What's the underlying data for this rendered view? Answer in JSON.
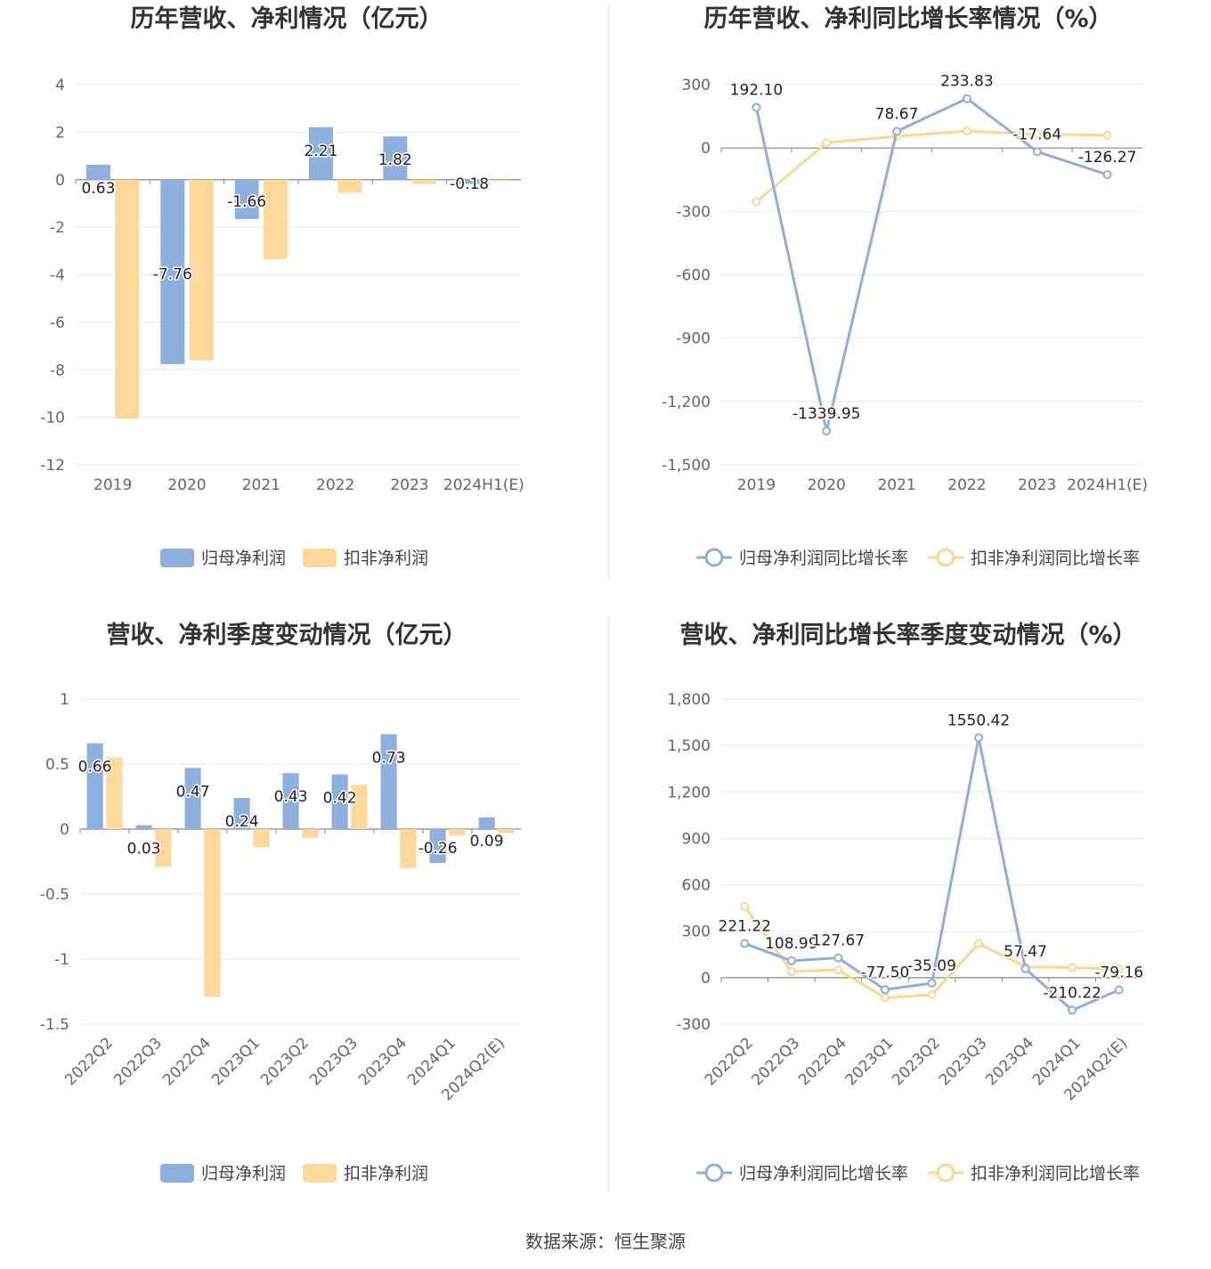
{
  "colors": {
    "primary": "#8fb0dd",
    "secondary": "#fcd89a",
    "primary_line": "#8eaede",
    "secondary_line": "#fbd890"
  },
  "footer": "数据来源：恒生聚源",
  "chart_data": [
    {
      "type": "bar",
      "title": "历年营收、净利情况（亿元）",
      "categories": [
        "2019",
        "2020",
        "2021",
        "2022",
        "2023",
        "2024H1(E)"
      ],
      "yticks": [
        "4",
        "2",
        "0",
        "-2",
        "-4",
        "-6",
        "-8",
        "-10",
        "-12"
      ],
      "ylim": [
        -12,
        4
      ],
      "series": [
        {
          "name": "归母净利润",
          "values": [
            0.63,
            -7.76,
            -1.66,
            2.21,
            1.82,
            -0.18
          ],
          "labels": [
            "0.63",
            "-7.76",
            "-1.66",
            "2.21",
            "1.82",
            "-0.18"
          ]
        },
        {
          "name": "扣非净利润",
          "values": [
            -10.05,
            -7.6,
            -3.35,
            -0.55,
            -0.18,
            -0.05
          ]
        }
      ]
    },
    {
      "type": "line",
      "title": "历年营收、净利同比增长率情况（%）",
      "categories": [
        "2019",
        "2020",
        "2021",
        "2022",
        "2023",
        "2024H1(E)"
      ],
      "yticks": [
        "300",
        "0",
        "-300",
        "-600",
        "-900",
        "-1,200",
        "-1,500"
      ],
      "ylim": [
        -1500,
        300
      ],
      "series": [
        {
          "name": "归母净利润同比增长率",
          "values": [
            192.1,
            -1339.95,
            78.67,
            233.83,
            -17.64,
            -126.27
          ],
          "labels": [
            "192.10",
            "-1339.95",
            "78.67",
            "233.83",
            "-17.64",
            "-126.27"
          ]
        },
        {
          "name": "扣非净利润同比增长率",
          "values": [
            -255,
            25,
            55,
            80,
            65,
            60
          ]
        }
      ]
    },
    {
      "type": "bar",
      "title": "营收、净利季度变动情况（亿元）",
      "categories": [
        "2022Q2",
        "2022Q3",
        "2022Q4",
        "2023Q1",
        "2023Q2",
        "2023Q3",
        "2023Q4",
        "2024Q1",
        "2024Q2(E)"
      ],
      "yticks": [
        "1",
        "0.5",
        "0",
        "-0.5",
        "-1",
        "-1.5"
      ],
      "ylim": [
        -1.5,
        1
      ],
      "series": [
        {
          "name": "归母净利润",
          "values": [
            0.66,
            0.03,
            0.47,
            0.24,
            0.43,
            0.42,
            0.73,
            -0.26,
            0.09
          ],
          "labels": [
            "0.66",
            "0.03",
            "0.47",
            "0.24",
            "0.43",
            "0.42",
            "0.73",
            "-0.26",
            "0.09"
          ]
        },
        {
          "name": "扣非净利润",
          "values": [
            0.55,
            -0.29,
            -1.29,
            -0.14,
            -0.07,
            0.34,
            -0.3,
            -0.05,
            -0.03
          ]
        }
      ]
    },
    {
      "type": "line",
      "title": "营收、净利同比增长率季度变动情况（%）",
      "categories": [
        "2022Q2",
        "2022Q3",
        "2022Q4",
        "2023Q1",
        "2023Q2",
        "2023Q3",
        "2023Q4",
        "2024Q1",
        "2024Q2(E)"
      ],
      "yticks": [
        "1,800",
        "1,500",
        "1,200",
        "900",
        "600",
        "300",
        "0",
        "-300"
      ],
      "ylim": [
        -300,
        1800
      ],
      "series": [
        {
          "name": "归母净利润同比增长率",
          "values": [
            221.22,
            108.99,
            127.67,
            -77.5,
            -35.09,
            1550.42,
            57.47,
            -210.22,
            -79.16
          ],
          "labels": [
            "221.22",
            "108.99",
            "127.67",
            "-77.50",
            "-35.09",
            "1550.42",
            "57.47",
            "-210.22",
            "-79.16"
          ]
        },
        {
          "name": "扣非净利润同比增长率",
          "values": [
            460,
            40,
            50,
            -130,
            -110,
            220,
            70,
            65,
            55
          ]
        }
      ]
    }
  ]
}
